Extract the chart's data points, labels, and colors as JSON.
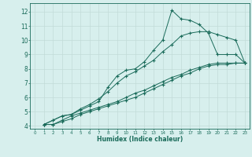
{
  "xlabel": "Humidex (Indice chaleur)",
  "bg_color": "#d7efed",
  "grid_color": "#c2dbd8",
  "line_color": "#1a6b5a",
  "xlim": [
    -0.5,
    23.5
  ],
  "ylim": [
    3.8,
    12.6
  ],
  "xticks": [
    0,
    1,
    2,
    3,
    4,
    5,
    6,
    7,
    8,
    9,
    10,
    11,
    12,
    13,
    14,
    15,
    16,
    17,
    18,
    19,
    20,
    21,
    22,
    23
  ],
  "yticks": [
    4,
    5,
    6,
    7,
    8,
    9,
    10,
    11,
    12
  ],
  "series": [
    {
      "x": [
        1,
        2,
        3,
        4,
        5,
        6,
        7,
        8,
        9,
        10,
        11,
        12,
        13,
        14,
        15,
        16,
        17,
        18,
        19,
        20,
        21,
        22,
        23
      ],
      "y": [
        4.1,
        4.4,
        4.7,
        4.8,
        5.1,
        5.4,
        5.7,
        6.7,
        7.5,
        7.9,
        8.0,
        8.5,
        9.3,
        10.0,
        12.1,
        11.5,
        11.4,
        11.1,
        10.5,
        9.0,
        9.0,
        9.0,
        8.4
      ]
    },
    {
      "x": [
        1,
        2,
        3,
        4,
        5,
        6,
        7,
        8,
        9,
        10,
        11,
        12,
        13,
        14,
        15,
        16,
        17,
        18,
        19,
        20,
        21,
        22,
        23
      ],
      "y": [
        4.1,
        4.4,
        4.7,
        4.8,
        5.2,
        5.5,
        5.9,
        6.4,
        7.0,
        7.5,
        7.8,
        8.2,
        8.6,
        9.2,
        9.7,
        10.3,
        10.5,
        10.6,
        10.6,
        10.4,
        10.2,
        10.0,
        8.4
      ]
    },
    {
      "x": [
        1,
        2,
        3,
        4,
        5,
        6,
        7,
        8,
        9,
        10,
        11,
        12,
        13,
        14,
        15,
        16,
        17,
        18,
        19,
        20,
        21,
        22,
        23
      ],
      "y": [
        4.1,
        4.1,
        4.4,
        4.7,
        4.9,
        5.1,
        5.3,
        5.5,
        5.7,
        6.0,
        6.3,
        6.5,
        6.8,
        7.1,
        7.4,
        7.6,
        7.9,
        8.1,
        8.3,
        8.4,
        8.4,
        8.4,
        8.4
      ]
    },
    {
      "x": [
        1,
        2,
        3,
        4,
        5,
        6,
        7,
        8,
        9,
        10,
        11,
        12,
        13,
        14,
        15,
        16,
        17,
        18,
        19,
        20,
        21,
        22,
        23
      ],
      "y": [
        4.1,
        4.1,
        4.3,
        4.5,
        4.8,
        5.0,
        5.2,
        5.4,
        5.6,
        5.8,
        6.0,
        6.3,
        6.6,
        6.9,
        7.2,
        7.5,
        7.7,
        8.0,
        8.2,
        8.3,
        8.3,
        8.4,
        8.4
      ]
    }
  ]
}
